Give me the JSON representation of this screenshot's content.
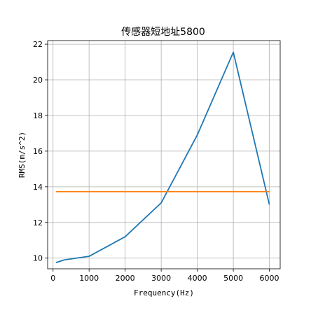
{
  "chart_data": {
    "type": "line",
    "title": "传感器短地址5800",
    "xlabel": "Frequency(Hz)",
    "ylabel": "RMS(m/s^2)",
    "xlim": [
      -150,
      6300
    ],
    "ylim": [
      9.4,
      22.2
    ],
    "xticks": [
      0,
      1000,
      2000,
      3000,
      4000,
      5000,
      6000
    ],
    "yticks": [
      10,
      12,
      14,
      16,
      18,
      20,
      22
    ],
    "grid": true,
    "series": [
      {
        "color": "#1f77b4",
        "x": [
          80,
          315,
          1000,
          2000,
          3000,
          4000,
          5000,
          6000
        ],
        "y": [
          9.75,
          9.9,
          10.1,
          11.2,
          13.1,
          16.9,
          21.55,
          13.0
        ]
      },
      {
        "color": "#ff7f0e",
        "x": [
          80,
          6000
        ],
        "y": [
          13.73,
          13.73
        ]
      }
    ]
  }
}
